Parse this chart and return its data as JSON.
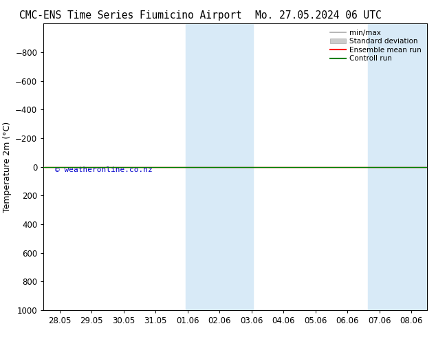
{
  "title_left": "CMC-ENS Time Series Fiumicino Airport",
  "title_right": "Mo. 27.05.2024 06 UTC",
  "ylabel": "Temperature 2m (°C)",
  "copyright": "© weatheronline.co.nz",
  "ylim_bottom": 1000,
  "ylim_top": -1000,
  "yticks": [
    -800,
    -600,
    -400,
    -200,
    0,
    200,
    400,
    600,
    800,
    1000
  ],
  "xtick_labels": [
    "28.05",
    "29.05",
    "30.05",
    "31.05",
    "01.06",
    "02.06",
    "03.06",
    "04.06",
    "05.06",
    "06.06",
    "07.06",
    "08.06"
  ],
  "xtick_positions": [
    0,
    1,
    2,
    3,
    4,
    5,
    6,
    7,
    8,
    9,
    10,
    11
  ],
  "xlim": [
    -0.5,
    11.5
  ],
  "shaded_bands": [
    {
      "x_start": 3.95,
      "x_end": 6.05
    },
    {
      "x_start": 9.65,
      "x_end": 11.5
    }
  ],
  "shade_color": "#d8eaf7",
  "line_y": 0,
  "control_run_color": "#008000",
  "ensemble_mean_color": "#ff0000",
  "minmax_color": "#aaaaaa",
  "stddev_color": "#cccccc",
  "legend_labels": [
    "min/max",
    "Standard deviation",
    "Ensemble mean run",
    "Controll run"
  ],
  "background_color": "#ffffff",
  "plot_bg_color": "#ffffff",
  "title_fontsize": 10.5,
  "tick_fontsize": 8.5,
  "label_fontsize": 9,
  "copyright_color": "#0000cc"
}
